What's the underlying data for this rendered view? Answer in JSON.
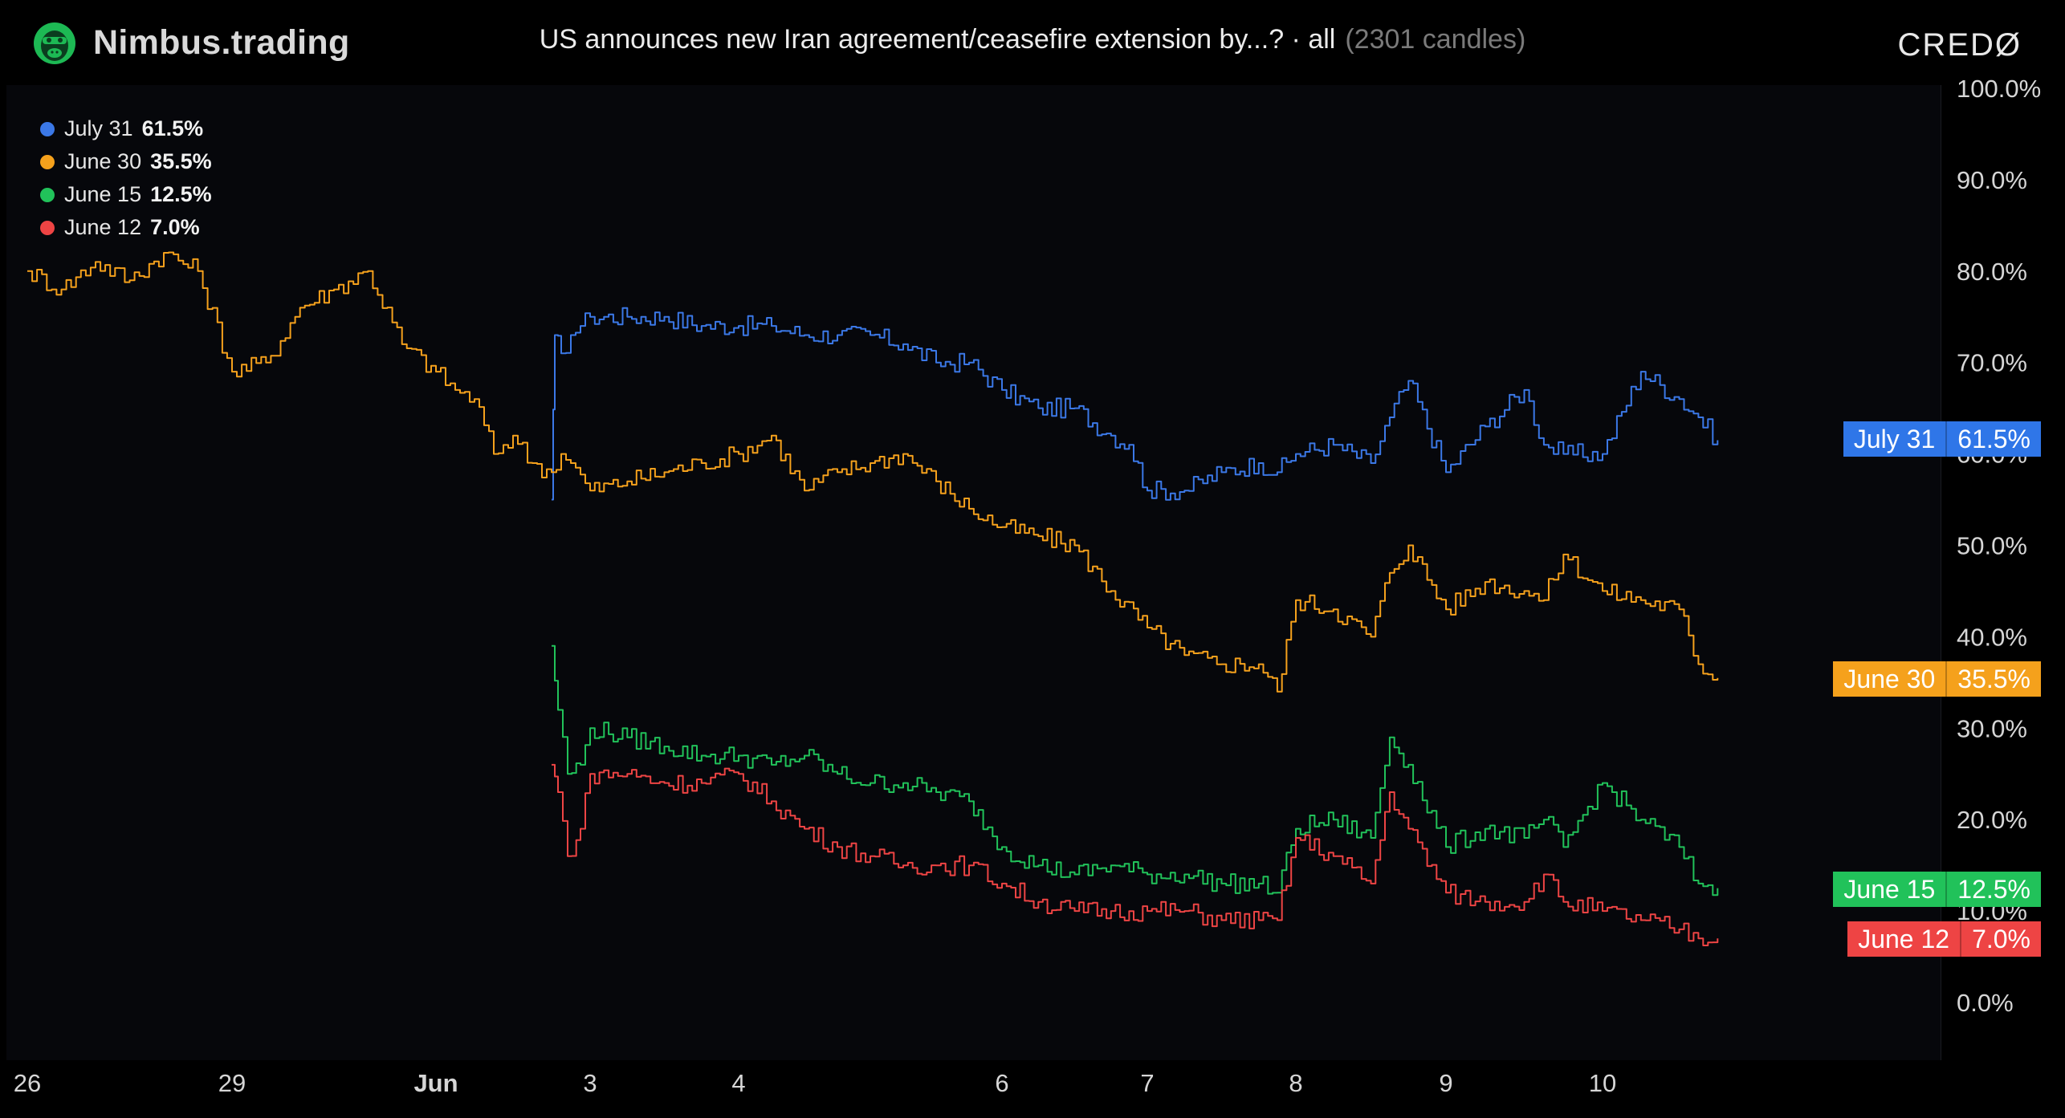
{
  "header": {
    "brand": "Nimbus.trading",
    "title": "US announces new Iran agreement/ceasefire extension by...? · all",
    "candles": "(2301 candles)",
    "partner_logo": "CREDØ",
    "brand_icon": "gorilla-logo-icon"
  },
  "legend": {
    "items": [
      {
        "label": "July 31",
        "value": "61.5%",
        "color": "#3b78e7"
      },
      {
        "label": "June 30",
        "value": "35.5%",
        "color": "#f5a11c"
      },
      {
        "label": "June 15",
        "value": "12.5%",
        "color": "#21c25a"
      },
      {
        "label": "June 12",
        "value": "7.0%",
        "color": "#ee4444"
      }
    ]
  },
  "price_tags": [
    {
      "label": "July 31",
      "value": "61.5%",
      "color": "#2f76e8"
    },
    {
      "label": "June 30",
      "value": "35.5%",
      "color": "#f5a11c"
    },
    {
      "label": "June 15",
      "value": "12.5%",
      "color": "#21c25a"
    },
    {
      "label": "June 12",
      "value": "7.0%",
      "color": "#ee4444"
    }
  ],
  "chart_data": {
    "type": "line",
    "title": "US announces new Iran agreement/ceasefire extension by...?",
    "x_ticks": [
      "26",
      "29",
      "Jun",
      "3",
      "4",
      "6",
      "7",
      "8",
      "9",
      "10"
    ],
    "y_ticks": [
      "0.0%",
      "10.0%",
      "20.0%",
      "30.0%",
      "40.0%",
      "50.0%",
      "60.0%",
      "70.0%",
      "80.0%",
      "90.0%",
      "100.0%"
    ],
    "ylim": [
      0,
      100
    ],
    "y_unit": "%",
    "grid": false,
    "legend_position": "top-left",
    "series": [
      {
        "name": "July 31",
        "color": "#3b78e7",
        "x": [
          "Jun 2 12:00",
          "Jun 2 13:00",
          "Jun 2 15:00",
          "Jun 2 18:00",
          "Jun 2 21:00",
          "Jun 3 00:00",
          "Jun 3 06:00",
          "Jun 3 12:00",
          "Jun 3 18:00",
          "Jun 4 00:00",
          "Jun 4 06:00",
          "Jun 4 12:00",
          "Jun 4 18:00",
          "Jun 5 00:00",
          "Jun 5 06:00",
          "Jun 5 12:00",
          "Jun 5 18:00",
          "Jun 6 00:00",
          "Jun 6 06:00",
          "Jun 6 12:00",
          "Jun 6 18:00",
          "Jun 6 21:00",
          "Jun 7 00:00",
          "Jun 7 06:00",
          "Jun 7 12:00",
          "Jun 7 18:00",
          "Jun 7 21:00",
          "Jun 8 00:00",
          "Jun 8 06:00",
          "Jun 8 12:00",
          "Jun 8 15:00",
          "Jun 8 18:00",
          "Jun 9 00:00",
          "Jun 9 06:00",
          "Jun 9 12:00",
          "Jun 9 15:00",
          "Jun 9 18:00",
          "Jun 10 00:00",
          "Jun 10 06:00",
          "Jun 10 12:00",
          "Jun 10 15:00",
          "Jun 10 18:00"
        ],
        "values": [
          55,
          73,
          71,
          73,
          74,
          75,
          75,
          75,
          74,
          74,
          74,
          73,
          73,
          73,
          72,
          70,
          70,
          67,
          65,
          65,
          62,
          61,
          56,
          56,
          58,
          59,
          58,
          60,
          61,
          59,
          64,
          68,
          58,
          63,
          67,
          61,
          60,
          60,
          69,
          66,
          64,
          61.5
        ]
      },
      {
        "name": "June 30",
        "color": "#f5a11c",
        "x": [
          "May 26 00:00",
          "May 26 12:00",
          "May 27 00:00",
          "May 27 12:00",
          "May 28 00:00",
          "May 28 12:00",
          "May 29 00:00",
          "May 29 12:00",
          "May 30 00:00",
          "May 30 12:00",
          "May 31 00:00",
          "May 31 12:00",
          "Jun 1 00:00",
          "Jun 1 06:00",
          "Jun 1 12:00",
          "Jun 1 18:00",
          "Jun 2 00:00",
          "Jun 2 06:00",
          "Jun 2 12:00",
          "Jun 2 15:00",
          "Jun 2 18:00",
          "Jun 3 00:00",
          "Jun 3 06:00",
          "Jun 3 12:00",
          "Jun 3 18:00",
          "Jun 4 00:00",
          "Jun 4 06:00",
          "Jun 4 12:00",
          "Jun 4 18:00",
          "Jun 5 00:00",
          "Jun 5 06:00",
          "Jun 5 12:00",
          "Jun 5 18:00",
          "Jun 6 00:00",
          "Jun 6 06:00",
          "Jun 6 12:00",
          "Jun 6 18:00",
          "Jun 7 00:00",
          "Jun 7 06:00",
          "Jun 7 12:00",
          "Jun 7 18:00",
          "Jun 7 21:00",
          "Jun 8 00:00",
          "Jun 8 06:00",
          "Jun 8 12:00",
          "Jun 8 15:00",
          "Jun 8 18:00",
          "Jun 9 00:00",
          "Jun 9 06:00",
          "Jun 9 12:00",
          "Jun 9 15:00",
          "Jun 9 18:00",
          "Jun 10 00:00",
          "Jun 10 06:00",
          "Jun 10 12:00",
          "Jun 10 15:00",
          "Jun 10 18:00"
        ],
        "values": [
          80,
          78,
          81,
          79,
          82,
          80,
          69,
          70,
          76,
          78,
          80,
          72,
          69,
          67,
          66,
          60,
          62,
          59,
          58,
          60,
          59,
          56,
          57,
          58,
          59,
          60,
          62,
          56,
          58,
          59,
          60,
          57,
          54,
          52,
          51,
          50,
          45,
          41,
          38,
          37,
          37,
          34,
          44,
          43,
          40,
          47,
          50,
          43,
          46,
          45,
          44,
          49,
          45,
          44,
          43,
          37,
          35.5
        ]
      },
      {
        "name": "June 15",
        "color": "#21c25a",
        "x": [
          "Jun 2 12:00",
          "Jun 2 14:00",
          "Jun 2 17:00",
          "Jun 2 21:00",
          "Jun 3 00:00",
          "Jun 3 06:00",
          "Jun 3 12:00",
          "Jun 3 18:00",
          "Jun 4 00:00",
          "Jun 4 06:00",
          "Jun 4 12:00",
          "Jun 4 18:00",
          "Jun 5 00:00",
          "Jun 5 06:00",
          "Jun 5 12:00",
          "Jun 5 18:00",
          "Jun 6 00:00",
          "Jun 6 06:00",
          "Jun 6 12:00",
          "Jun 6 18:00",
          "Jun 7 00:00",
          "Jun 7 06:00",
          "Jun 7 12:00",
          "Jun 7 18:00",
          "Jun 7 21:00",
          "Jun 8 00:00",
          "Jun 8 06:00",
          "Jun 8 12:00",
          "Jun 8 15:00",
          "Jun 8 18:00",
          "Jun 9 00:00",
          "Jun 9 06:00",
          "Jun 9 12:00",
          "Jun 9 15:00",
          "Jun 9 18:00",
          "Jun 10 00:00",
          "Jun 10 06:00",
          "Jun 10 12:00",
          "Jun 10 15:00",
          "Jun 10 18:00"
        ],
        "values": [
          39,
          32,
          25,
          26,
          30,
          29,
          28,
          27,
          27,
          26,
          27,
          25,
          24,
          24,
          23,
          22,
          17,
          15,
          14,
          15,
          14,
          14,
          13,
          13,
          12,
          19,
          20,
          18,
          29,
          26,
          17,
          19,
          18,
          20,
          17,
          24,
          20,
          17,
          13,
          12.5
        ]
      },
      {
        "name": "June 12",
        "color": "#ee4444",
        "x": [
          "Jun 2 12:00",
          "Jun 2 14:00",
          "Jun 2 17:00",
          "Jun 2 21:00",
          "Jun 3 00:00",
          "Jun 3 06:00",
          "Jun 3 12:00",
          "Jun 3 18:00",
          "Jun 4 00:00",
          "Jun 4 06:00",
          "Jun 4 12:00",
          "Jun 4 18:00",
          "Jun 5 00:00",
          "Jun 5 06:00",
          "Jun 5 12:00",
          "Jun 5 18:00",
          "Jun 6 00:00",
          "Jun 6 06:00",
          "Jun 6 12:00",
          "Jun 6 18:00",
          "Jun 7 00:00",
          "Jun 7 06:00",
          "Jun 7 12:00",
          "Jun 7 18:00",
          "Jun 7 21:00",
          "Jun 8 00:00",
          "Jun 8 06:00",
          "Jun 8 12:00",
          "Jun 8 15:00",
          "Jun 8 18:00",
          "Jun 9 00:00",
          "Jun 9 06:00",
          "Jun 9 12:00",
          "Jun 9 15:00",
          "Jun 9 18:00",
          "Jun 10 00:00",
          "Jun 10 06:00",
          "Jun 10 12:00",
          "Jun 10 15:00",
          "Jun 10 18:00"
        ],
        "values": [
          26,
          23,
          16,
          19,
          25,
          25,
          24,
          24,
          25,
          22,
          19,
          17,
          16,
          15,
          15,
          15,
          13,
          11,
          10,
          10,
          10,
          10,
          9,
          9,
          9,
          18,
          16,
          13,
          23,
          19,
          12,
          11,
          11,
          14,
          11,
          10,
          9,
          8,
          7,
          7.0
        ]
      }
    ]
  }
}
